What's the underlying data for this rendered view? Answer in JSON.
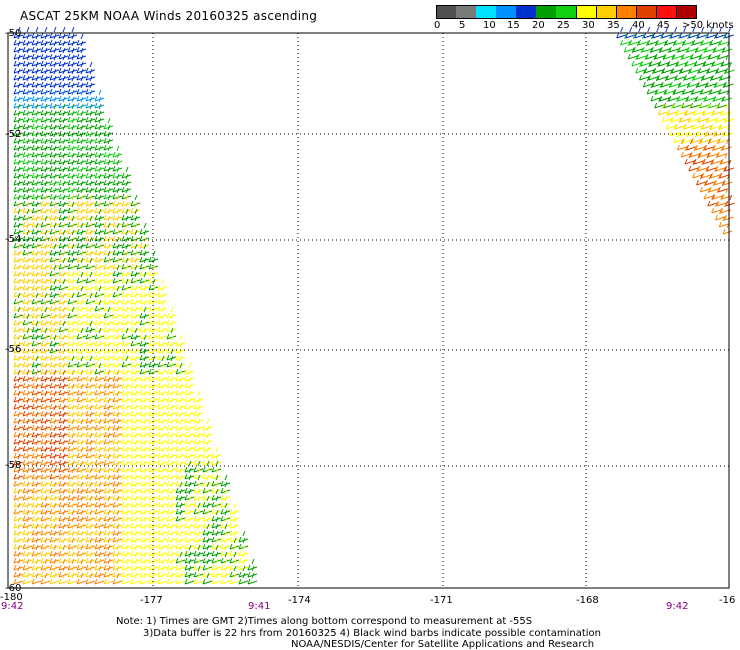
{
  "title": "ASCAT 25KM NOAA Winds 20160325 ascending",
  "colorbar": {
    "colors": [
      "#505050",
      "#7a7a7a",
      "#00e0ff",
      "#0090ff",
      "#0030d0",
      "#00a000",
      "#10d010",
      "#ffff00",
      "#ffd000",
      "#ff8000",
      "#e04000",
      "#ff1010",
      "#b00000",
      "#804020",
      "#ff40ff",
      "#c000ff",
      "#8000c0",
      "#400080",
      "#ffffff"
    ],
    "ticks": [
      "0",
      "5",
      "10",
      "15",
      "20",
      "25",
      "30",
      "35",
      "40",
      "45",
      ">50 knots"
    ]
  },
  "map": {
    "lat_labels": [
      "-50",
      "-52",
      "-54",
      "-56",
      "-58",
      "-60"
    ],
    "lon_labels": [
      "-180",
      "-177",
      "-174",
      "-171",
      "-168",
      "-16"
    ],
    "times": [
      "9:42",
      "9:41",
      "9:42"
    ]
  },
  "notes": {
    "line1": "Note: 1) Times are GMT 2)Times along bottom correspond to measurement at -55S",
    "line2": "3)Data buffer is 22 hrs from 20160325 4) Black wind barbs indicate possible contamination",
    "line3": "NOAA/NESDIS/Center for Satellite Applications and Research"
  }
}
